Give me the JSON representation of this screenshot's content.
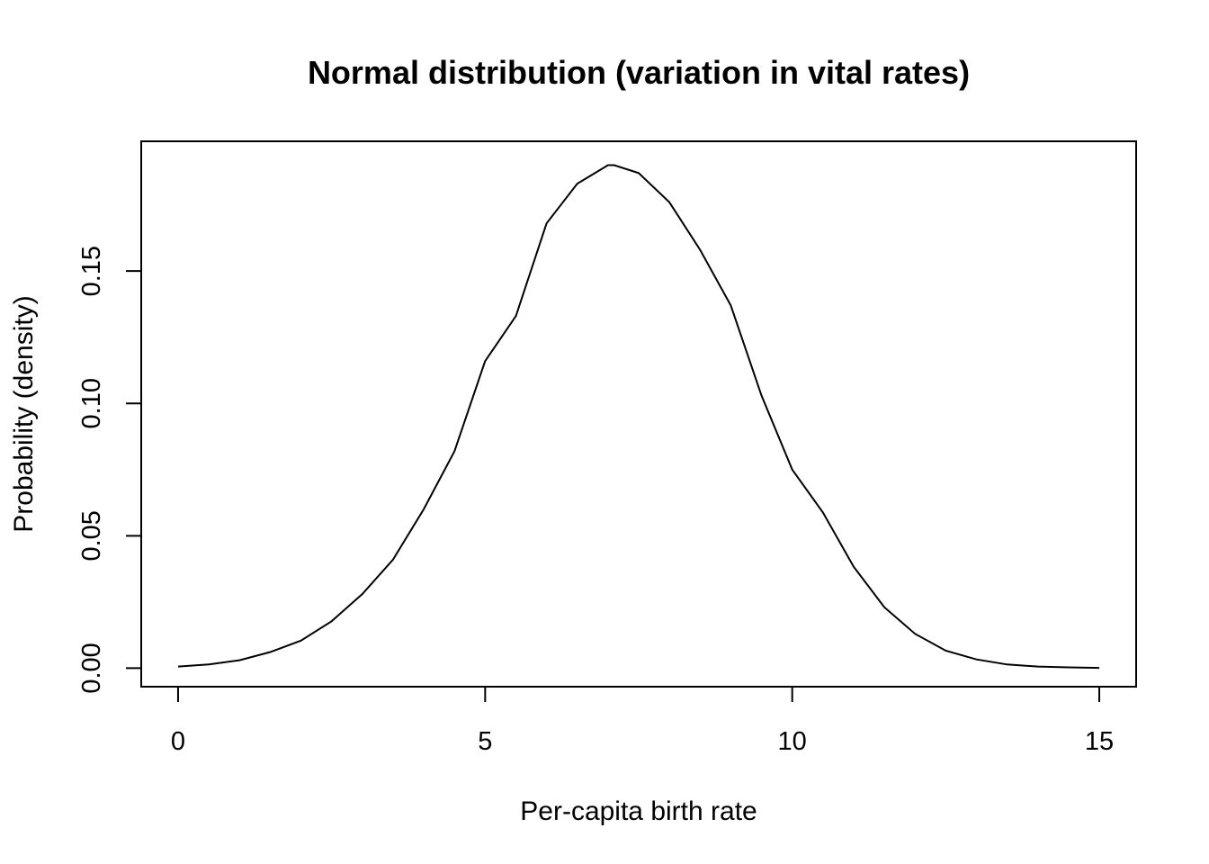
{
  "chart_data": {
    "type": "line",
    "title": "Normal distribution (variation in vital rates)",
    "xlabel": "Per-capita birth rate",
    "ylabel": "Probability (density)",
    "xlim": [
      -0.6,
      15.6
    ],
    "ylim": [
      -0.007,
      0.199
    ],
    "x_ticks": [
      0,
      5,
      10,
      15
    ],
    "x_tick_labels": [
      "0",
      "5",
      "10",
      "15"
    ],
    "y_ticks": [
      0,
      0.05,
      0.1,
      0.15
    ],
    "y_tick_labels": [
      "0.00",
      "0.05",
      "0.10",
      "0.15"
    ],
    "grid": false,
    "legend": "none",
    "line_color": "#000000",
    "distribution": {
      "mean": 7.1,
      "sd": 2.1
    },
    "series": [
      {
        "x": [
          0,
          0.5,
          1,
          1.5,
          2,
          2.5,
          3,
          3.5,
          4,
          4.5,
          5,
          5.5,
          6,
          6.5,
          7,
          7.1,
          7.5,
          8,
          8.5,
          9,
          9.5,
          10,
          10.5,
          11,
          11.5,
          12,
          12.5,
          13,
          13.5,
          14,
          14.5,
          15
        ],
        "values": [
          0.0006,
          0.0014,
          0.003,
          0.0061,
          0.0104,
          0.0177,
          0.028,
          0.041,
          0.06,
          0.0819,
          0.116,
          0.133,
          0.168,
          0.183,
          0.19,
          0.19,
          0.187,
          0.176,
          0.158,
          0.137,
          0.103,
          0.075,
          0.0588,
          0.0383,
          0.023,
          0.013,
          0.0066,
          0.0033,
          0.0014,
          0.0006,
          0.0003,
          0.0001
        ]
      }
    ]
  }
}
